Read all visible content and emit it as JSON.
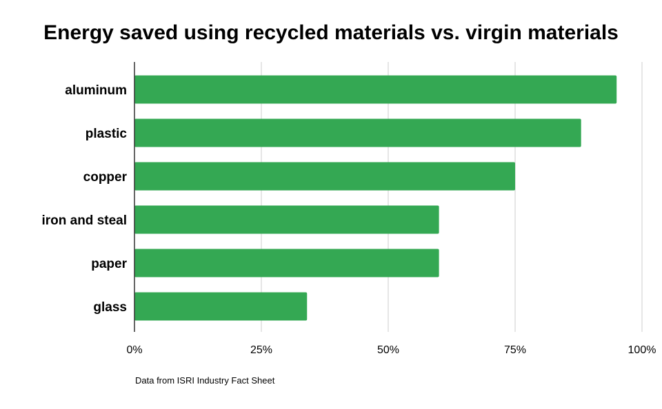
{
  "chart_data": {
    "type": "bar",
    "orientation": "horizontal",
    "title": "Energy saved using recycled materials vs. virgin materials",
    "categories": [
      "aluminum",
      "plastic",
      "copper",
      "iron and steal",
      "paper",
      "glass"
    ],
    "values": [
      95,
      88,
      75,
      60,
      60,
      34
    ],
    "value_unit": "%",
    "xlim": [
      0,
      100
    ],
    "ticks": [
      0,
      25,
      50,
      75,
      100
    ],
    "tick_labels": [
      "0%",
      "25%",
      "50%",
      "75%",
      "100%"
    ],
    "xlabel": "",
    "ylabel": "",
    "grid": true,
    "legend": "none",
    "bar_color": "#34a853",
    "gridline_color": "#cccccc",
    "axis_color": "#333333",
    "note": "Data from ISRI Industry Fact Sheet"
  }
}
